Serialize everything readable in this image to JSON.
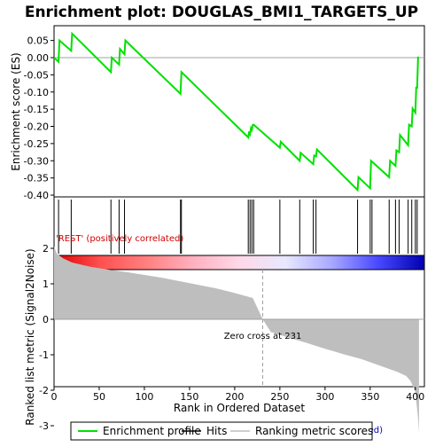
{
  "chart_data": [
    {
      "panel": "enrichment",
      "type": "line",
      "title": "Enrichment plot: DOUGLAS_BMI1_TARGETS_UP",
      "ylabel": "Enrichment score (ES)",
      "ylim": [
        -0.4,
        0.08
      ],
      "xlim": [
        0,
        410
      ],
      "yticks": [
        0.05,
        0.0,
        -0.05,
        -0.1,
        -0.15,
        -0.2,
        -0.25,
        -0.3,
        -0.35,
        -0.4
      ],
      "ytick_labels": [
        "0.05",
        "0.00",
        "-0.05",
        "-0.10",
        "-0.15",
        "-0.20",
        "-0.25",
        "-0.30",
        "-0.35",
        "-0.40"
      ],
      "series": [
        {
          "name": "Enrichment profile",
          "color": "#00e000",
          "x": [
            0,
            5,
            6,
            19,
            20,
            63,
            64,
            72,
            73,
            78,
            79,
            140,
            141,
            215,
            216,
            217,
            218,
            219,
            220,
            221,
            250,
            251,
            272,
            273,
            287,
            288,
            290,
            291,
            336,
            337,
            350,
            351,
            371,
            372,
            378,
            379,
            382,
            383,
            392,
            393,
            396,
            397,
            400,
            401,
            402,
            403
          ],
          "y": [
            0.0,
            -0.012,
            0.05,
            0.02,
            0.07,
            -0.042,
            0.0,
            -0.02,
            0.025,
            0.01,
            0.05,
            -0.105,
            -0.042,
            -0.232,
            -0.215,
            -0.222,
            -0.205,
            -0.21,
            -0.196,
            -0.195,
            -0.262,
            -0.245,
            -0.3,
            -0.277,
            -0.31,
            -0.285,
            -0.287,
            -0.267,
            -0.385,
            -0.348,
            -0.38,
            -0.3,
            -0.348,
            -0.3,
            -0.315,
            -0.27,
            -0.275,
            -0.225,
            -0.255,
            -0.195,
            -0.2,
            -0.148,
            -0.16,
            -0.085,
            -0.09,
            0.003
          ]
        }
      ]
    },
    {
      "panel": "hits",
      "type": "scatter",
      "series": [
        {
          "name": "Hits",
          "color": "#000000",
          "x": [
            5,
            19,
            63,
            72,
            78,
            140,
            141,
            215,
            217,
            219,
            221,
            250,
            272,
            287,
            290,
            336,
            350,
            352,
            371,
            378,
            382,
            392,
            396,
            400,
            402
          ]
        }
      ]
    },
    {
      "panel": "ranked-metric",
      "type": "area",
      "ylabel": "Ranked list metric (Signal2Noise)",
      "xlabel": "Rank in Ordered Dataset",
      "ylim": [
        -3.4,
        2.8
      ],
      "yticks": [
        2,
        1,
        0,
        -1,
        -2,
        -3
      ],
      "ytick_labels": [
        "2",
        "1",
        "0",
        "-1",
        "-2",
        "-3"
      ],
      "xticks": [
        0,
        50,
        100,
        150,
        200,
        250,
        300,
        350,
        400
      ],
      "xtick_labels": [
        "0",
        "50",
        "100",
        "150",
        "200",
        "250",
        "300",
        "350",
        "400"
      ],
      "series": [
        {
          "name": "Ranking metric scores",
          "color": "#bebebe",
          "x": [
            0,
            3,
            10,
            20,
            40,
            60,
            80,
            100,
            120,
            140,
            160,
            180,
            200,
            220,
            231,
            240,
            260,
            280,
            300,
            320,
            340,
            360,
            380,
            390,
            395,
            400,
            403,
            404
          ],
          "y": [
            2.05,
            1.85,
            1.72,
            1.6,
            1.48,
            1.4,
            1.33,
            1.25,
            1.17,
            1.07,
            0.97,
            0.87,
            0.74,
            0.6,
            0.0,
            -0.36,
            -0.52,
            -0.67,
            -0.83,
            -0.98,
            -1.12,
            -1.3,
            -1.48,
            -1.6,
            -1.75,
            -2.05,
            -2.8,
            -3.2
          ]
        }
      ],
      "annotations": [
        {
          "text": "'REST' (positively correlated)",
          "x": 2,
          "y": 2.3,
          "color": "#d00000"
        },
        {
          "text": "Zero cross at 231",
          "x": 231,
          "y": -0.45,
          "color": "#000000"
        },
        {
          "text": "'shSCR' (negatively correlated)",
          "x": 212,
          "y": -3.1,
          "color": "#0000c0"
        }
      ],
      "zero_cross": 231
    }
  ],
  "legend": {
    "items": [
      {
        "label": "Enrichment profile",
        "color": "#00e000"
      },
      {
        "label": "Hits",
        "color": "#000000"
      },
      {
        "label": "Ranking metric scores",
        "color": "#bebebe"
      }
    ]
  },
  "colorbar": {
    "stops": [
      "#e00000",
      "#ff5050",
      "#ff8080",
      "#ffb0c0",
      "#ffd8e8",
      "#e8e8ff",
      "#a8a8ff",
      "#4848ff",
      "#0000b0"
    ]
  }
}
